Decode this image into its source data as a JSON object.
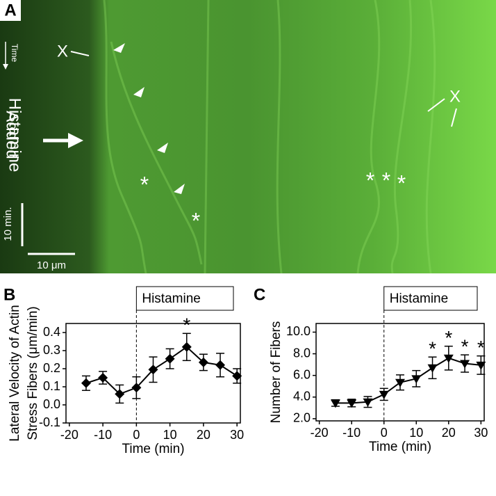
{
  "panel_a": {
    "label": "A",
    "time": "Time",
    "x_labels": [
      "X",
      "X"
    ],
    "treatment": [
      "Histamine",
      "Added"
    ],
    "time_scale": "10 min.",
    "length_scale": "10 μm",
    "asterisks": [
      "*",
      "*",
      "*",
      "*",
      "*"
    ]
  },
  "chart_data": [
    {
      "type": "line",
      "panel_label": "B",
      "xlabel": "Time (min)",
      "ylabel": [
        "Lateral Velocity of Actin",
        "Stress Fibers (μm/min)"
      ],
      "x": [
        -15,
        -10,
        -5,
        0,
        5,
        10,
        15,
        20,
        25,
        30
      ],
      "series": [
        {
          "values": [
            0.12,
            0.15,
            0.06,
            0.095,
            0.195,
            0.255,
            0.32,
            0.235,
            0.22,
            0.16
          ],
          "errors": [
            0.04,
            0.035,
            0.05,
            0.06,
            0.07,
            0.055,
            0.075,
            0.045,
            0.065,
            0.04
          ],
          "color": "#000000",
          "marker": "diamond"
        }
      ],
      "xlim": [
        -21,
        31
      ],
      "ylim": [
        -0.1,
        0.45
      ],
      "xticks": [
        -20,
        -10,
        0,
        10,
        20,
        30
      ],
      "yticks": [
        -0.1,
        {
          "value": 0,
          "label": "0.0"
        },
        0.1,
        0.2,
        0.3,
        0.4
      ],
      "event": {
        "x": 0,
        "label": "Histamine"
      },
      "significance": {
        "label": "*",
        "x": [
          15
        ]
      }
    },
    {
      "type": "line",
      "panel_label": "C",
      "xlabel": "Time (min)",
      "ylabel": [
        "Number of Fibers"
      ],
      "x": [
        -15,
        -10,
        -5,
        0,
        5,
        10,
        15,
        20,
        25,
        30
      ],
      "series": [
        {
          "values": [
            3.45,
            3.45,
            3.55,
            4.25,
            5.35,
            5.7,
            6.7,
            7.6,
            7.1,
            6.95
          ],
          "errors": [
            0.3,
            0.35,
            0.5,
            0.55,
            0.7,
            0.75,
            1.0,
            1.1,
            0.8,
            0.85
          ],
          "color": "#000000",
          "marker": "triangle-down"
        }
      ],
      "xlim": [
        -21,
        31
      ],
      "ylim": [
        1.8,
        10.8
      ],
      "xticks": [
        -20,
        -10,
        0,
        10,
        20,
        30
      ],
      "yticks": [
        {
          "value": 2,
          "label": "2.0"
        },
        {
          "value": 4,
          "label": "4.0"
        },
        {
          "value": 6,
          "label": "6.0"
        },
        {
          "value": 8,
          "label": "8.0"
        },
        {
          "value": 10,
          "label": "10.0"
        }
      ],
      "event": {
        "x": 0,
        "label": "Histamine"
      },
      "significance": {
        "label": "*",
        "x": [
          15,
          20,
          25,
          30
        ]
      }
    }
  ]
}
